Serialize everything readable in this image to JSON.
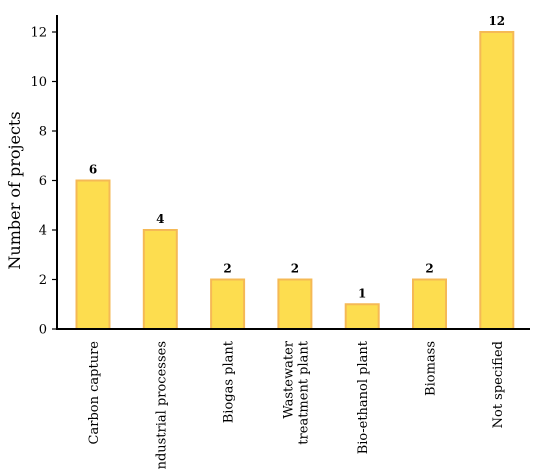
{
  "chart_data": {
    "type": "bar",
    "title": "",
    "xlabel": "",
    "ylabel": "Number of projects",
    "ylim": [
      0,
      12
    ],
    "yticks": [
      0,
      2,
      4,
      6,
      8,
      10,
      12
    ],
    "grid": false,
    "legend": "none",
    "categories": [
      [
        "Carbon capture"
      ],
      [
        "Industrial processes"
      ],
      [
        "Biogas plant"
      ],
      [
        "Wastewater",
        "treatment plant"
      ],
      [
        "Bio-ethanol plant"
      ],
      [
        "Biomass"
      ],
      [
        "Not specified"
      ]
    ],
    "values": [
      6,
      4,
      2,
      2,
      1,
      2,
      12
    ],
    "data_labels": [
      "6",
      "4",
      "2",
      "2",
      "1",
      "2",
      "12"
    ],
    "colors": {
      "bar_fill": "#FDDD4F",
      "bar_stroke": "#F5B955",
      "axis": "#000000"
    }
  }
}
